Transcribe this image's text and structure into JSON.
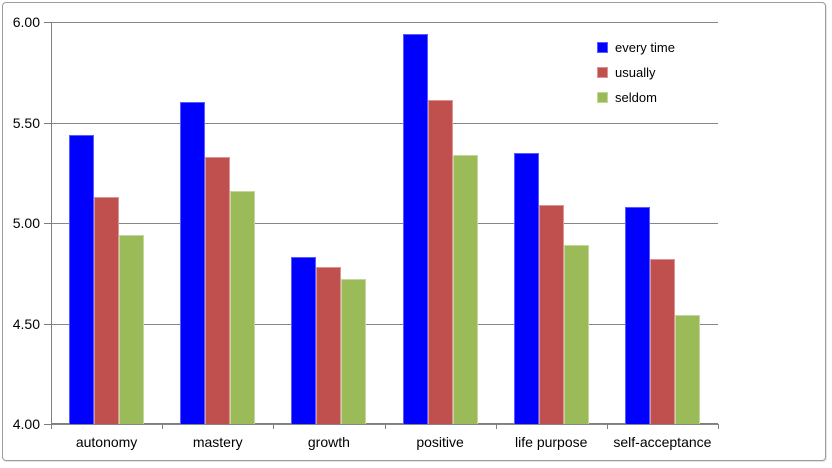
{
  "chart_data": {
    "type": "bar",
    "title": "",
    "xlabel": "",
    "ylabel": "",
    "categories": [
      "autonomy",
      "mastery",
      "growth",
      "positive",
      "life purpose",
      "self-acceptance"
    ],
    "series": [
      {
        "name": "every time",
        "color": "#0000fe",
        "border_color": "#5a5aff",
        "values": [
          5.44,
          5.6,
          4.83,
          5.94,
          5.35,
          5.08
        ]
      },
      {
        "name": "usually",
        "color": "#c0504d",
        "border_color": "#d99694",
        "values": [
          5.13,
          5.33,
          4.78,
          5.61,
          5.09,
          4.82
        ]
      },
      {
        "name": "seldom",
        "color": "#9bbb59",
        "border_color": "#c3d69b",
        "values": [
          4.94,
          5.16,
          4.72,
          5.34,
          4.89,
          4.54
        ]
      }
    ],
    "ylim": [
      4.0,
      6.0
    ],
    "yticks": [
      {
        "value": 6.0,
        "label": "6.00"
      },
      {
        "value": 5.5,
        "label": "5.50"
      },
      {
        "value": 5.0,
        "label": "5.00"
      },
      {
        "value": 4.5,
        "label": "4.50"
      },
      {
        "value": 4.0,
        "label": "4.00"
      }
    ],
    "grid": true,
    "legend_position": "top-right"
  },
  "colors": {
    "gridline": "#878787",
    "axis": "#7f7f7f",
    "text": "#000000",
    "frame_border": "#9d9d9d",
    "background": "#ffffff"
  }
}
